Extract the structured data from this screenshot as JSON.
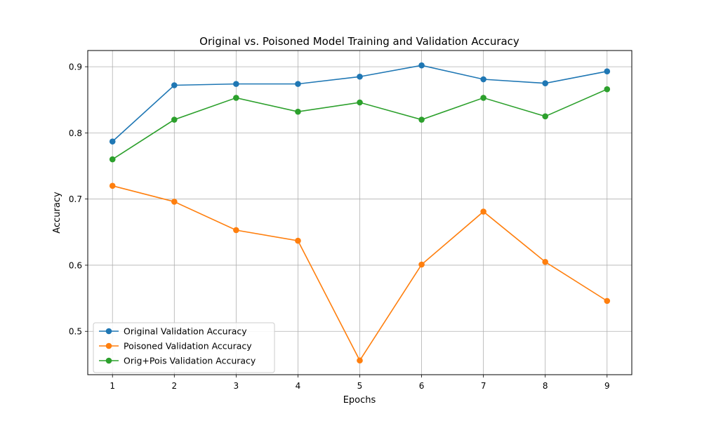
{
  "chart_data": {
    "type": "line",
    "title": "Original vs. Poisoned Model Training and Validation Accuracy",
    "xlabel": "Epochs",
    "ylabel": "Accuracy",
    "x": [
      1,
      2,
      3,
      4,
      5,
      6,
      7,
      8,
      9
    ],
    "xlim": [
      0.6,
      9.4
    ],
    "ylim": [
      0.4345,
      0.9245
    ],
    "xticks": [
      1,
      2,
      3,
      4,
      5,
      6,
      7,
      8,
      9
    ],
    "yticks": [
      0.5,
      0.6,
      0.7,
      0.8,
      0.9
    ],
    "grid": true,
    "legend_position": "lower-left",
    "series": [
      {
        "name": "Original Validation Accuracy",
        "color": "#1f77b4",
        "values": [
          0.787,
          0.872,
          0.874,
          0.874,
          0.885,
          0.902,
          0.881,
          0.875,
          0.893
        ]
      },
      {
        "name": "Poisoned Validation Accuracy",
        "color": "#ff7f0e",
        "values": [
          0.72,
          0.696,
          0.653,
          0.637,
          0.456,
          0.601,
          0.681,
          0.605,
          0.546
        ]
      },
      {
        "name": "Orig+Pois Validation Accuracy",
        "color": "#2ca02c",
        "values": [
          0.76,
          0.82,
          0.853,
          0.832,
          0.846,
          0.82,
          0.853,
          0.825,
          0.866
        ]
      }
    ]
  }
}
